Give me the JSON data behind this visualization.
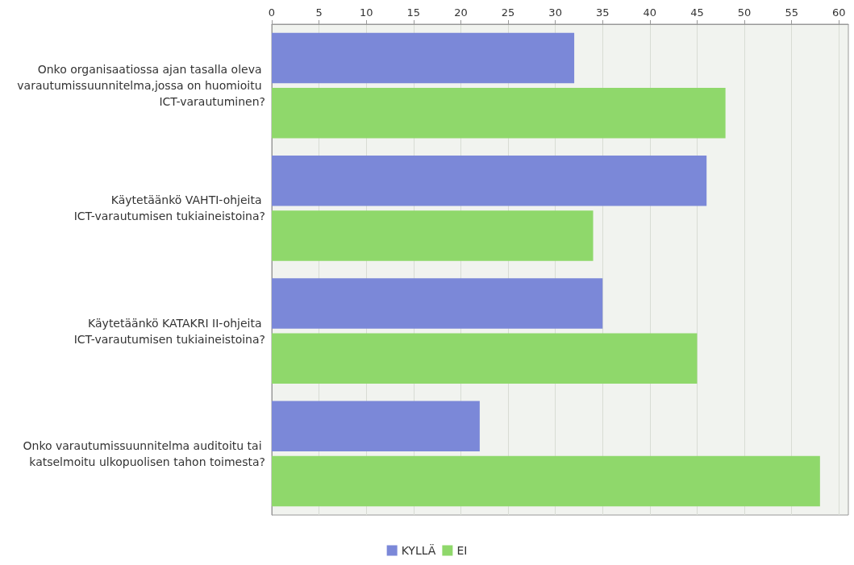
{
  "chart_data": {
    "type": "bar",
    "orientation": "horizontal",
    "categories": [
      "Onko organisaatiossa ajan tasalla oleva varautumissuunnitelma,jossa on huomioitu ICT-varautuminen?",
      "Käytetäänkö VAHTI-ohjeita ICT-varautumisen tukiaineistoina?",
      "Käytetäänkö KATAKRI II-ohjeita ICT-varautumisen tukiaineistoina?",
      "Onko varautumissuunnitelma auditoitu tai katselmoitu ulkopuolisen tahon toimesta?"
    ],
    "series": [
      {
        "name": "KYLLÄ",
        "color": "#7b88d8",
        "values": [
          32,
          46,
          35,
          22
        ]
      },
      {
        "name": "EI",
        "color": "#8fd86b",
        "values": [
          48,
          34,
          45,
          58
        ]
      }
    ],
    "xlim": [
      0,
      61
    ],
    "xticks": [
      0,
      5,
      10,
      15,
      20,
      25,
      30,
      35,
      40,
      45,
      50,
      55,
      60
    ],
    "grid": "x",
    "legend": "bottom"
  }
}
